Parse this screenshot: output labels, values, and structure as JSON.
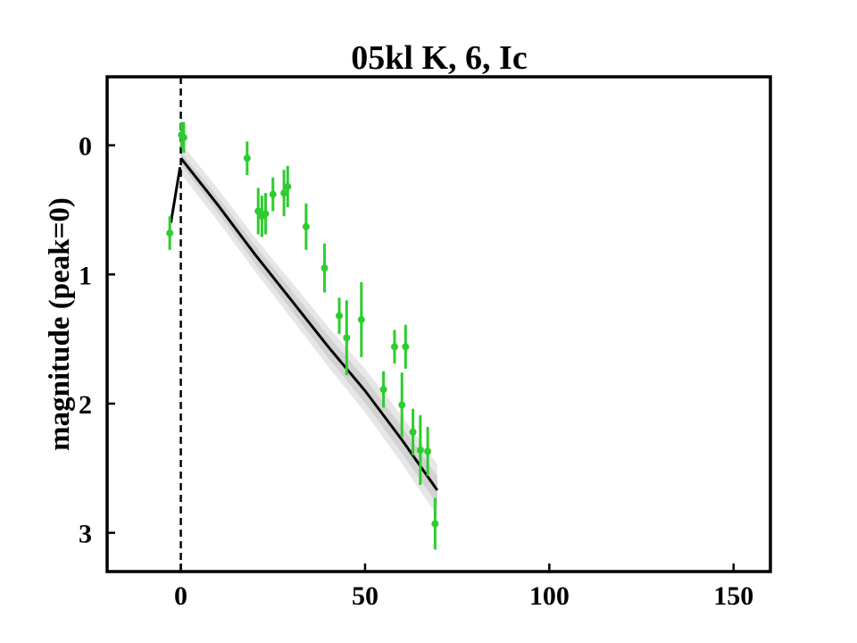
{
  "chart_data": {
    "type": "scatter",
    "title": "05kl K, 6, Ic",
    "xlabel": "",
    "ylabel": "magnitude (peak=0)",
    "xlim": [
      -20,
      160
    ],
    "ylim": [
      3.3,
      -0.53
    ],
    "y_inverted": true,
    "x_ticks": [
      0,
      50,
      100,
      150
    ],
    "x_tick_labels": [
      "0",
      "50",
      "100",
      "150"
    ],
    "y_ticks": [
      0,
      1,
      2,
      3
    ],
    "y_tick_labels": [
      "0",
      "1",
      "2",
      "3"
    ],
    "peak_line_x": 0,
    "grid": false,
    "colors": {
      "points": "#2ecc2e",
      "model_line": "#000000",
      "band_outer": "#e6e6e6",
      "band_inner": "#d2d2d2"
    },
    "points": [
      {
        "x": -3,
        "y": 0.68,
        "err": 0.13
      },
      {
        "x": 0.2,
        "y": -0.08,
        "err": 0.1
      },
      {
        "x": 0.8,
        "y": -0.06,
        "err": 0.12
      },
      {
        "x": 18,
        "y": 0.1,
        "err": 0.13
      },
      {
        "x": 21,
        "y": 0.51,
        "err": 0.18
      },
      {
        "x": 22,
        "y": 0.55,
        "err": 0.16
      },
      {
        "x": 23,
        "y": 0.53,
        "err": 0.16
      },
      {
        "x": 25,
        "y": 0.38,
        "err": 0.13
      },
      {
        "x": 28,
        "y": 0.37,
        "err": 0.18
      },
      {
        "x": 29,
        "y": 0.32,
        "err": 0.16
      },
      {
        "x": 34,
        "y": 0.63,
        "err": 0.18
      },
      {
        "x": 39,
        "y": 0.95,
        "err": 0.19
      },
      {
        "x": 43,
        "y": 1.32,
        "err": 0.14
      },
      {
        "x": 45,
        "y": 1.49,
        "err": 0.29
      },
      {
        "x": 49,
        "y": 1.35,
        "err": 0.29
      },
      {
        "x": 55,
        "y": 1.89,
        "err": 0.14
      },
      {
        "x": 58,
        "y": 1.56,
        "err": 0.13
      },
      {
        "x": 60,
        "y": 2.01,
        "err": 0.25
      },
      {
        "x": 61,
        "y": 1.56,
        "err": 0.17
      },
      {
        "x": 63,
        "y": 2.22,
        "err": 0.18
      },
      {
        "x": 65,
        "y": 2.36,
        "err": 0.27
      },
      {
        "x": 67,
        "y": 2.37,
        "err": 0.19
      },
      {
        "x": 69,
        "y": 2.93,
        "err": 0.2
      }
    ],
    "model_rise": [
      [
        -2.7,
        0.6
      ],
      [
        -0.2,
        0.17
      ]
    ],
    "model_decline": [
      [
        0,
        0.1
      ],
      [
        10,
        0.46
      ],
      [
        20,
        0.84
      ],
      [
        30,
        1.2
      ],
      [
        40,
        1.56
      ],
      [
        50,
        1.9
      ],
      [
        60,
        2.28
      ],
      [
        69.6,
        2.67
      ]
    ],
    "band_inner_halfwidth": [
      0.05,
      0.07,
      0.09,
      0.11
    ],
    "band_outer_halfwidth": [
      0.12,
      0.13,
      0.16,
      0.2
    ],
    "band_x": [
      0,
      20,
      45,
      70
    ]
  }
}
